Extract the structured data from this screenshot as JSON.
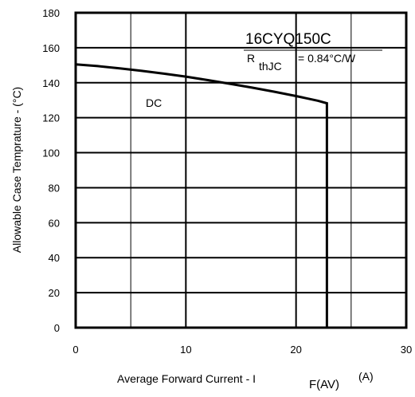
{
  "chart_data": {
    "type": "line",
    "part_number": "16CYQ150C",
    "rth_label": {
      "prefix": "R",
      "subscript": "thJC",
      "value": "= 0.84°C/W"
    },
    "xlabel": {
      "text": "Average Forward Current - I",
      "subscript": "F(AV)",
      "unit": "(A)"
    },
    "ylabel": "Allowable Case Temprature - (°C)",
    "xlim": [
      0,
      30
    ],
    "ylim": [
      0,
      180
    ],
    "x_ticks": [
      0,
      10,
      20,
      30
    ],
    "x_tick_labels": [
      "0",
      "10",
      "20",
      "30"
    ],
    "y_ticks": [
      0,
      20,
      40,
      60,
      80,
      100,
      120,
      140,
      160,
      180
    ],
    "y_tick_labels": [
      "0",
      "20",
      "40",
      "60",
      "80",
      "100",
      "120",
      "140",
      "160",
      "180"
    ],
    "x_grid": [
      5,
      10,
      20,
      25
    ],
    "grid": true,
    "series": [
      {
        "name": "DC",
        "x": [
          0,
          2,
          4,
          6,
          8,
          10,
          12,
          14,
          16,
          18,
          20,
          22,
          22.8,
          22.8
        ],
        "y": [
          150.5,
          149.5,
          148.2,
          146.8,
          145.2,
          143.5,
          141.5,
          139.4,
          137.2,
          134.9,
          132.4,
          129.7,
          128.3,
          0
        ]
      }
    ],
    "colors": {
      "line": "#000000",
      "grid": "#000000",
      "background": "#ffffff"
    }
  }
}
